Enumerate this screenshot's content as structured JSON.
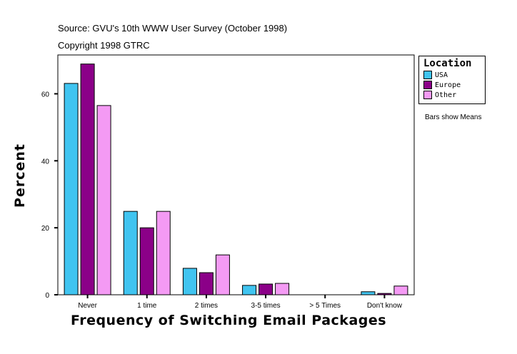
{
  "header": {
    "source": "Source: GVU's 10th WWW User Survey (October 1998)",
    "copyright": "Copyright 1998 GTRC"
  },
  "note": "Bars show Means",
  "chart_data": {
    "type": "bar",
    "xlabel": "Frequency of Switching Email Packages",
    "ylabel": "Percent",
    "categories": [
      "Never",
      "1 time",
      "2 times",
      "3-5 times",
      "> 5 Times",
      "Don't know"
    ],
    "yticks": [
      0,
      20,
      40,
      60
    ],
    "ylim": [
      0,
      71.6
    ],
    "grid": false,
    "legend": {
      "title": "Location",
      "placement": "right"
    },
    "series": [
      {
        "name": "USA",
        "color": "#40C4F0",
        "values": [
          63.1,
          24.9,
          7.9,
          2.8,
          0,
          0.9
        ]
      },
      {
        "name": "Europe",
        "color": "#8B0088",
        "values": [
          68.9,
          20.0,
          6.6,
          3.2,
          0,
          0.4
        ]
      },
      {
        "name": "Other",
        "color": "#F49AF4",
        "values": [
          56.5,
          24.9,
          11.9,
          3.4,
          0,
          2.6
        ]
      }
    ]
  }
}
